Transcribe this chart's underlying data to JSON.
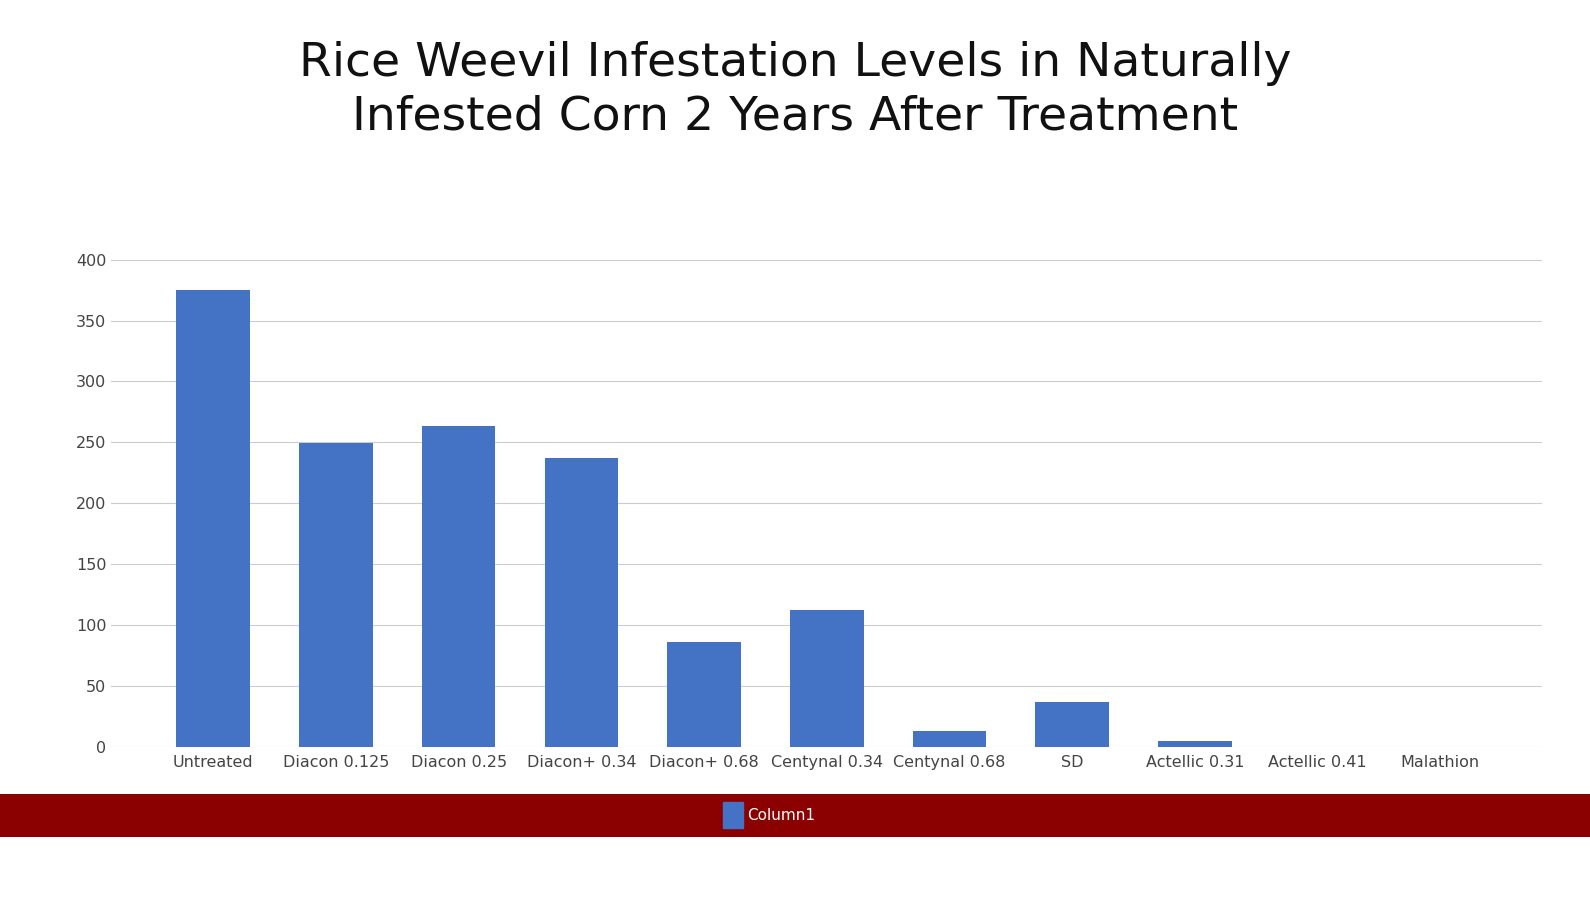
{
  "title": "Rice Weevil Infestation Levels in Naturally\nInfested Corn 2 Years After Treatment",
  "categories": [
    "Untreated",
    "Diacon 0.125",
    "Diacon 0.25",
    "Diacon+ 0.34",
    "Diacon+ 0.68",
    "Centynal 0.34",
    "Centynal 0.68",
    "SD",
    "Actellic 0.31",
    "Actellic 0.41",
    "Malathion"
  ],
  "values": [
    375,
    249,
    263,
    237,
    86,
    112,
    13,
    37,
    5,
    0,
    0
  ],
  "bar_color": "#4472C4",
  "ylim": [
    0,
    420
  ],
  "yticks": [
    0,
    50,
    100,
    150,
    200,
    250,
    300,
    350,
    400
  ],
  "legend_label": "Column1",
  "legend_color": "#4472C4",
  "background_color": "#FFFFFF",
  "title_fontsize": 34,
  "tick_fontsize": 11.5,
  "legend_fontsize": 11,
  "footer_bar_color": "#8B0000",
  "footer_text_color": "#FFFFFF",
  "grid_color": "#CCCCCC"
}
